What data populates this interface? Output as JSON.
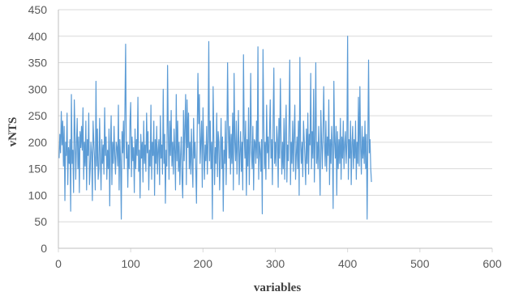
{
  "chart_data": {
    "type": "line",
    "title": "",
    "xlabel": "variables",
    "ylabel": "vNTS",
    "xlim": [
      0,
      600
    ],
    "ylim": [
      0,
      450
    ],
    "xticks": [
      "0",
      "100",
      "200",
      "300",
      "400",
      "500",
      "600"
    ],
    "yticks": [
      "0",
      "50",
      "100",
      "150",
      "200",
      "250",
      "300",
      "350",
      "400",
      "450"
    ],
    "grid": "horizontal",
    "legend": "none",
    "line_color": "#5B9BD5",
    "gridline_color": "#d9d9d9",
    "series": [
      {
        "x_start": 1,
        "x_step": 1,
        "values": [
          170,
          215,
          180,
          258,
          195,
          240,
          155,
          230,
          90,
          200,
          175,
          255,
          120,
          190,
          160,
          205,
          70,
          290,
          160,
          185,
          105,
          280,
          215,
          130,
          195,
          245,
          150,
          210,
          105,
          220,
          190,
          230,
          185,
          265,
          130,
          200,
          155,
          240,
          110,
          205,
          175,
          255,
          120,
          150,
          200,
          180,
          90,
          240,
          200,
          170,
          110,
          315,
          155,
          225,
          130,
          150,
          245,
          170,
          110,
          205,
          160,
          195,
          140,
          265,
          175,
          210,
          130,
          185,
          150,
          225,
          80,
          195,
          250,
          120,
          200,
          160,
          230,
          175,
          140,
          200,
          190,
          155,
          270,
          110,
          205,
          165,
          55,
          220,
          180,
          240,
          150,
          260,
          385,
          170,
          200,
          115,
          195,
          150,
          240,
          275,
          135,
          210,
          165,
          190,
          105,
          225,
          150,
          205,
          175,
          285,
          145,
          185,
          95,
          215,
          170,
          200,
          125,
          240,
          160,
          195,
          145,
          255,
          180,
          220,
          110,
          185,
          155,
          270,
          130,
          200,
          175,
          240,
          100,
          205,
          160,
          230,
          140,
          185,
          205,
          120,
          250,
          170,
          195,
          140,
          300,
          160,
          215,
          85,
          185,
          155,
          345,
          215,
          130,
          240,
          175,
          260,
          155,
          200,
          140,
          225,
          185,
          110,
          290,
          165,
          240,
          145,
          200,
          120,
          175,
          210,
          130,
          95,
          260,
          165,
          230,
          290,
          120,
          280,
          190,
          255,
          150,
          200,
          140,
          225,
          160,
          115,
          245,
          170,
          200,
          150,
          85,
          220,
          330,
          235,
          290,
          160,
          200,
          240,
          115,
          265,
          190,
          130,
          195,
          165,
          230,
          140,
          205,
          390,
          165,
          240,
          150,
          200,
          55,
          305,
          210,
          120,
          190,
          160,
          255,
          135,
          220,
          200,
          110,
          175,
          245,
          150,
          210,
          70,
          185,
          160,
          240,
          120,
          200,
          350,
          225,
          170,
          230,
          140,
          215,
          160,
          255,
          110,
          330,
          200,
          165,
          240,
          140,
          195,
          260,
          120,
          180,
          220,
          145,
          200,
          110,
          365,
          215,
          170,
          240,
          100,
          205,
          155,
          265,
          120,
          200,
          330,
          180,
          150,
          230,
          110,
          205,
          200,
          160,
          240,
          170,
          380,
          130,
          200,
          185,
          145,
          205,
          65,
          375,
          240,
          150,
          200,
          130,
          270,
          180,
          210,
          150,
          220,
          280,
          170,
          205,
          120,
          240,
          340,
          160,
          200,
          155,
          230,
          205,
          115,
          245,
          170,
          320,
          205,
          140,
          200,
          150,
          245,
          130,
          215,
          270,
          125,
          195,
          165,
          235,
          355,
          120,
          200,
          160,
          240,
          145,
          215,
          270,
          130,
          175,
          210,
          150,
          240,
          100,
          360,
          195,
          160,
          200,
          135,
          240,
          205,
          170,
          120,
          225,
          160,
          255,
          140,
          215,
          195,
          330,
          150,
          220,
          170,
          300,
          125,
          205,
          350,
          160,
          200,
          150,
          230,
          170,
          100,
          260,
          200,
          150,
          220,
          305,
          200,
          155,
          240,
          145,
          210,
          175,
          280,
          120,
          205,
          160,
          230,
          190,
          75,
          315,
          200,
          170,
          230,
          100,
          220,
          150,
          205,
          160,
          245,
          130,
          210,
          170,
          240,
          150,
          195,
          220,
          160,
          200,
          400,
          130,
          205,
          170,
          240,
          120,
          195,
          230,
          150,
          205,
          170,
          240,
          130,
          200,
          160,
          285,
          155,
          305,
          190,
          140,
          230,
          170,
          210,
          160,
          240,
          150,
          215,
          55,
          200,
          355,
          180,
          205,
          150,
          125
        ]
      }
    ]
  }
}
